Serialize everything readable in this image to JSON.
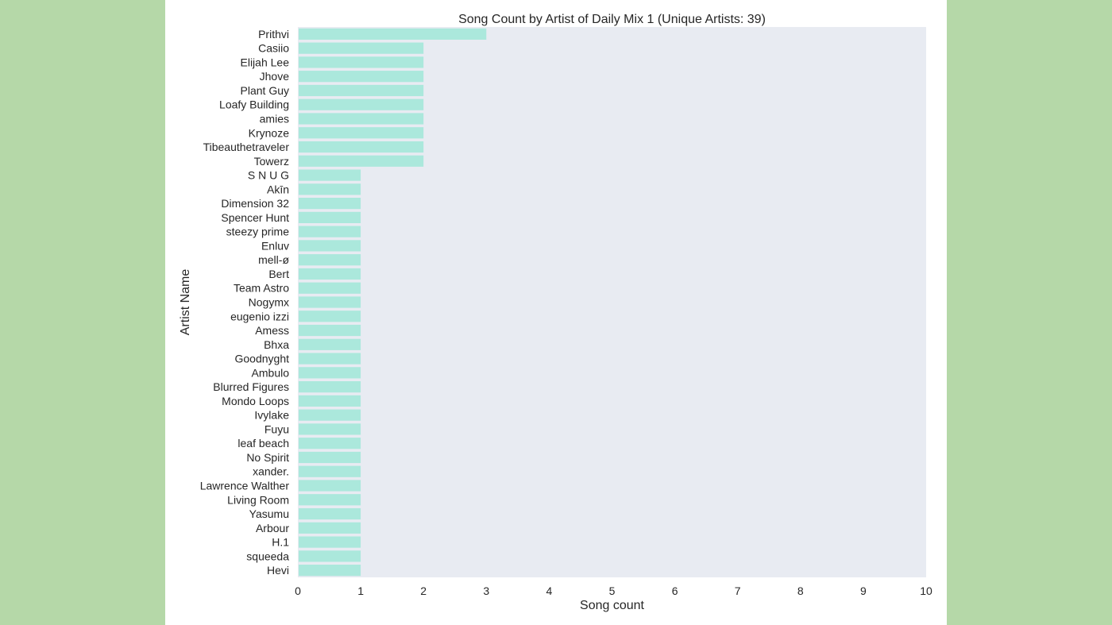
{
  "chart_data": {
    "type": "bar",
    "orientation": "horizontal",
    "title": "Song Count by Artist of Daily Mix 1 (Unique Artists: 39)",
    "xlabel": "Song count",
    "ylabel": "Artist Name",
    "xlim": [
      0,
      10
    ],
    "xticks": [
      "0",
      "1",
      "2",
      "3",
      "4",
      "5",
      "6",
      "7",
      "8",
      "9",
      "10"
    ],
    "grid": false,
    "bar_color": "#abe8dc",
    "plot_background": "#e8ebf2",
    "categories": [
      "Prithvi",
      "Casiio",
      "Elijah Lee",
      "Jhove",
      "Plant Guy",
      "Loafy Building",
      "amies",
      "Krynoze",
      "Tibeauthetraveler",
      "Towerz",
      "S N U G",
      "Akīn",
      "Dimension 32",
      "Spencer Hunt",
      "steezy prime",
      "Enluv",
      "mell-ø",
      "Bert",
      "Team Astro",
      "Nogymx",
      "eugenio izzi",
      "Amess",
      "Bhxa",
      "Goodnyght",
      "Ambulo",
      "Blurred Figures",
      "Mondo Loops",
      "Ivylake",
      "Fuyu",
      "leaf beach",
      "No Spirit",
      "xander.",
      "Lawrence Walther",
      "Living Room",
      "Yasumu",
      "Arbour",
      "H.1",
      "squeeda",
      "Hevi"
    ],
    "values": [
      3,
      2,
      2,
      2,
      2,
      2,
      2,
      2,
      2,
      2,
      1,
      1,
      1,
      1,
      1,
      1,
      1,
      1,
      1,
      1,
      1,
      1,
      1,
      1,
      1,
      1,
      1,
      1,
      1,
      1,
      1,
      1,
      1,
      1,
      1,
      1,
      1,
      1,
      1
    ]
  }
}
